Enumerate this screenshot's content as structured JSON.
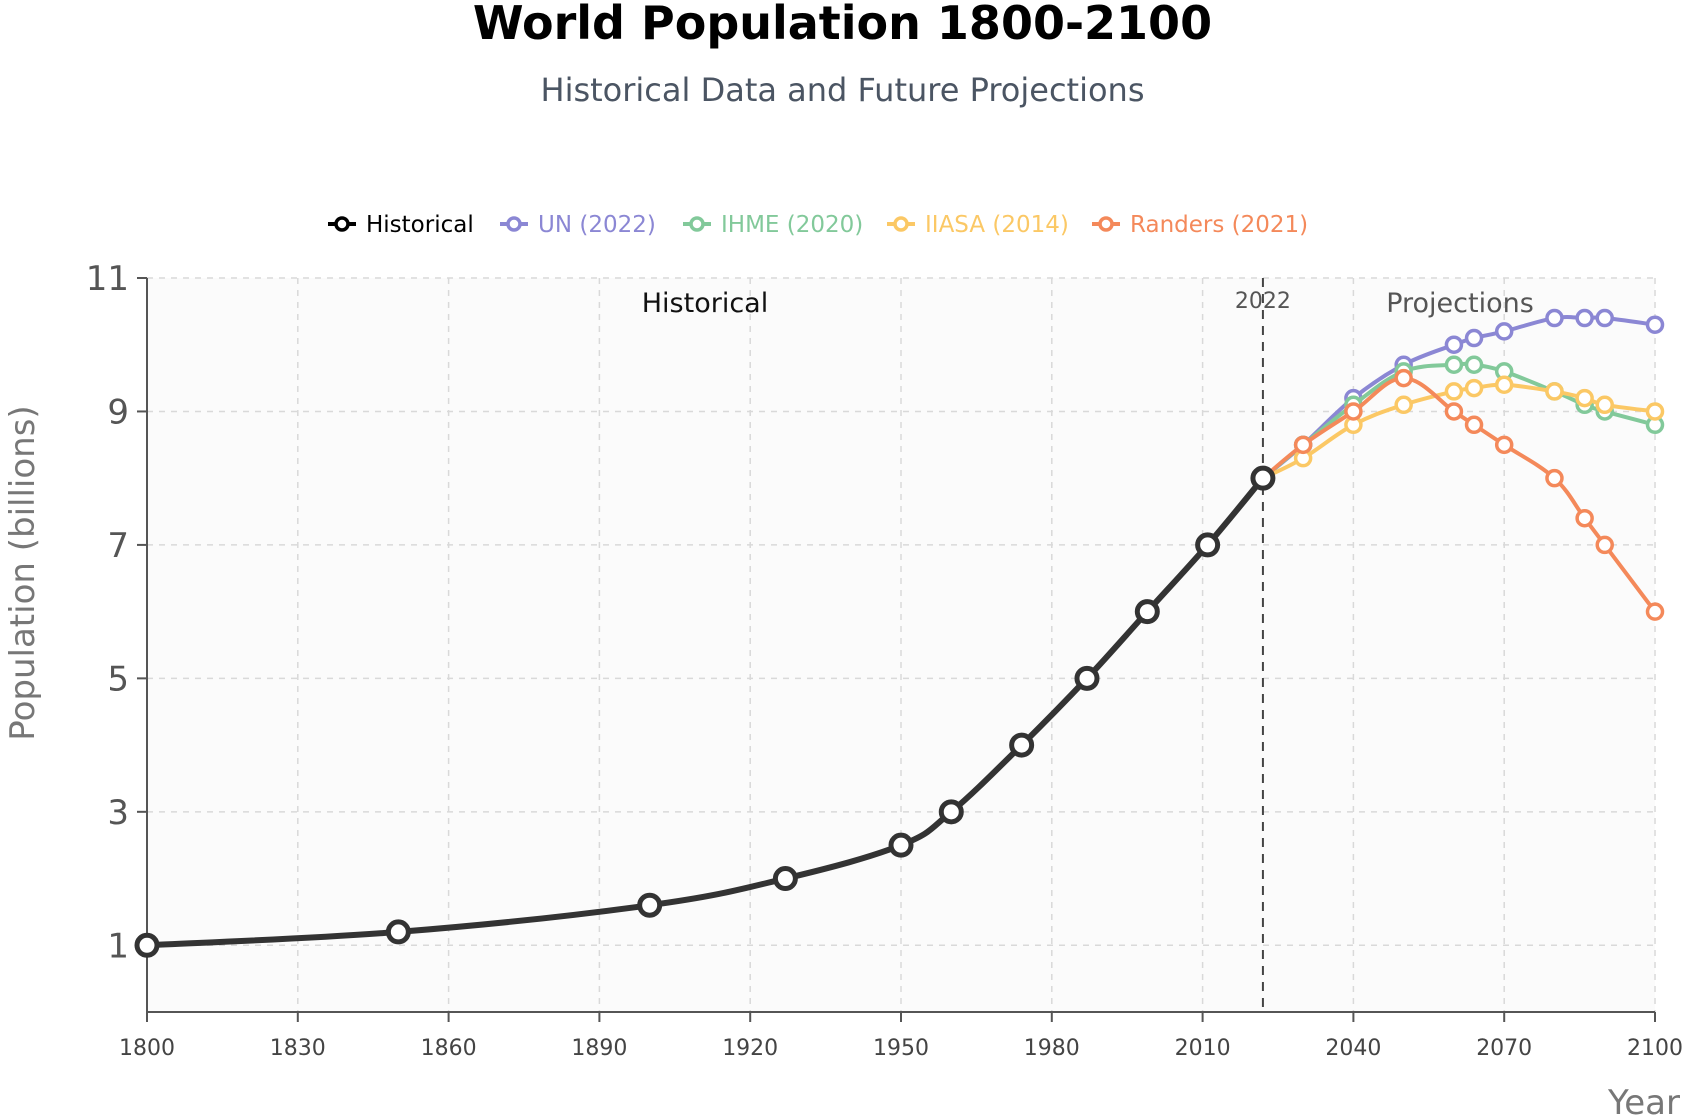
{
  "chart_data": {
    "type": "line",
    "title": "World Population 1800-2100",
    "subtitle": "Historical Data and Future Projections",
    "xlabel": "Year",
    "ylabel": "Population (billions)",
    "xlim": [
      1800,
      2100
    ],
    "ylim": [
      0,
      11
    ],
    "x_ticks": [
      1800,
      1830,
      1860,
      1890,
      1920,
      1950,
      1980,
      2010,
      2040,
      2070,
      2100
    ],
    "y_ticks": [
      1,
      3,
      5,
      7,
      9,
      11
    ],
    "grid": true,
    "legend_position": "top",
    "annotations": {
      "historical_label": "Historical",
      "projections_label": "Projections",
      "divider_year": 2022,
      "divider_label": "2022"
    },
    "series": [
      {
        "name": "Historical",
        "color": "#333333",
        "legend_color": "#000000",
        "x": [
          1800,
          1850,
          1900,
          1927,
          1950,
          1960,
          1974,
          1987,
          1999,
          2011,
          2022
        ],
        "y": [
          1,
          1.2,
          1.6,
          2,
          2.5,
          3,
          4,
          5,
          6,
          7,
          8
        ]
      },
      {
        "name": "UN (2022)",
        "color": "#8b87d4",
        "x": [
          2022,
          2030,
          2040,
          2050,
          2060,
          2064,
          2070,
          2080,
          2086,
          2090,
          2100
        ],
        "y": [
          8,
          8.5,
          9.2,
          9.7,
          10,
          10.1,
          10.2,
          10.4,
          10.4,
          10.4,
          10.3
        ]
      },
      {
        "name": "IHME (2020)",
        "color": "#82c99a",
        "x": [
          2022,
          2030,
          2040,
          2050,
          2060,
          2064,
          2070,
          2080,
          2086,
          2090,
          2100
        ],
        "y": [
          8,
          8.5,
          9.1,
          9.6,
          9.7,
          9.7,
          9.6,
          9.3,
          9.1,
          9,
          8.8
        ]
      },
      {
        "name": "IIASA (2014)",
        "color": "#fbc865",
        "x": [
          2022,
          2030,
          2040,
          2050,
          2060,
          2064,
          2070,
          2080,
          2086,
          2090,
          2100
        ],
        "y": [
          8,
          8.3,
          8.8,
          9.1,
          9.3,
          9.35,
          9.4,
          9.3,
          9.2,
          9.1,
          9.0
        ]
      },
      {
        "name": "Randers (2021)",
        "color": "#f4895a",
        "x": [
          2022,
          2030,
          2040,
          2050,
          2060,
          2064,
          2070,
          2080,
          2086,
          2090,
          2100
        ],
        "y": [
          8,
          8.5,
          9.0,
          9.5,
          9.0,
          8.8,
          8.5,
          8.0,
          7.4,
          7.0,
          6.0
        ]
      }
    ]
  }
}
